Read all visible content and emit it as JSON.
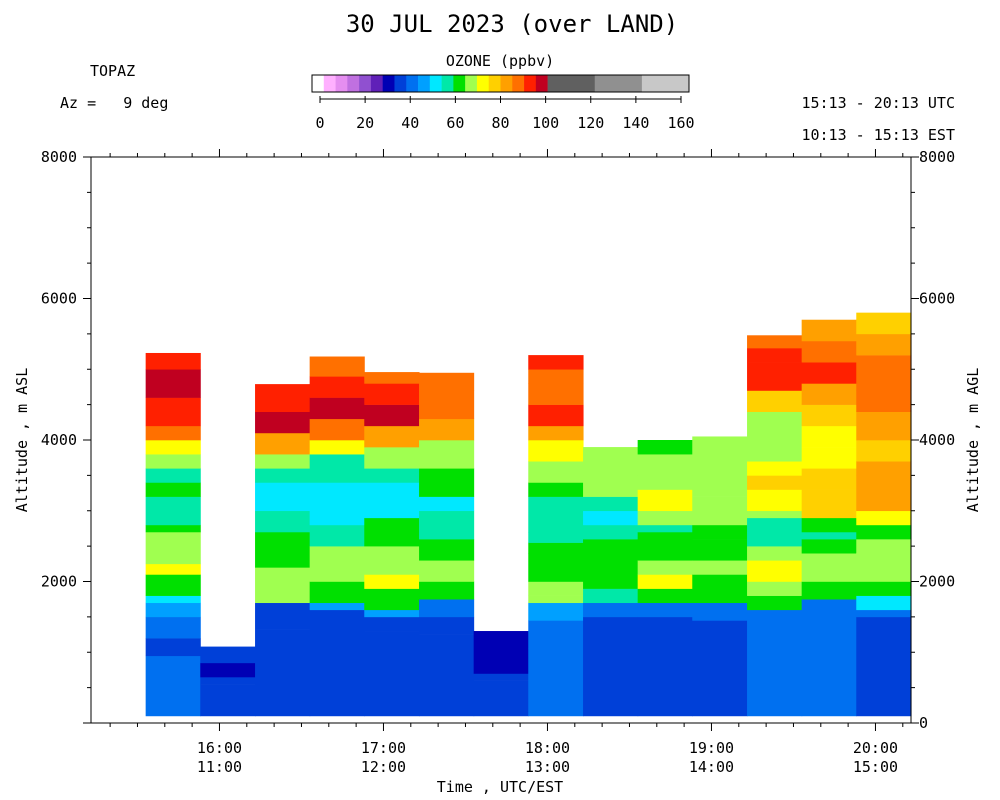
{
  "title": "30 JUL 2023 (over LAND)",
  "site": "TOPAZ",
  "azimuth": "Az =   9 deg",
  "utc_range": "15:13 - 20:13 UTC",
  "est_range": "10:13 - 15:13 EST",
  "colorbar": {
    "label": "OZONE (ppbv)",
    "ticks": [
      "0",
      "20",
      "40",
      "60",
      "80",
      "100",
      "120",
      "140",
      "160"
    ],
    "tick_values": [
      0,
      20,
      40,
      60,
      80,
      100,
      120,
      140,
      160
    ],
    "range": [
      0,
      160
    ],
    "bins": [
      {
        "from": 0,
        "to": 5,
        "color": "#ffffff"
      },
      {
        "from": 5,
        "to": 10,
        "color": "#ffb0ff"
      },
      {
        "from": 10,
        "to": 15,
        "color": "#e58ef0"
      },
      {
        "from": 15,
        "to": 20,
        "color": "#c070e0"
      },
      {
        "from": 20,
        "to": 25,
        "color": "#9050d0"
      },
      {
        "from": 25,
        "to": 30,
        "color": "#6020b8"
      },
      {
        "from": 30,
        "to": 35,
        "color": "#0000b4"
      },
      {
        "from": 35,
        "to": 40,
        "color": "#0040d8"
      },
      {
        "from": 40,
        "to": 45,
        "color": "#0070f0"
      },
      {
        "from": 45,
        "to": 50,
        "color": "#00a0ff"
      },
      {
        "from": 50,
        "to": 55,
        "color": "#00e8ff"
      },
      {
        "from": 55,
        "to": 60,
        "color": "#00e8a8"
      },
      {
        "from": 60,
        "to": 65,
        "color": "#00e000"
      },
      {
        "from": 65,
        "to": 70,
        "color": "#a0ff50"
      },
      {
        "from": 70,
        "to": 75,
        "color": "#ffff00"
      },
      {
        "from": 75,
        "to": 80,
        "color": "#ffd000"
      },
      {
        "from": 80,
        "to": 85,
        "color": "#ffa000"
      },
      {
        "from": 85,
        "to": 90,
        "color": "#ff7000"
      },
      {
        "from": 90,
        "to": 95,
        "color": "#ff2000"
      },
      {
        "from": 95,
        "to": 100,
        "color": "#c00020"
      },
      {
        "from": 100,
        "to": 120,
        "color": "#606060"
      },
      {
        "from": 120,
        "to": 140,
        "color": "#909090"
      },
      {
        "from": 140,
        "to": 160,
        "color": "#c8c8c8"
      }
    ]
  },
  "chart_data": {
    "type": "heatmap",
    "title": "30 JUL 2023 (over LAND)",
    "xlabel": "Time , UTC/EST",
    "ylabel_left": "Altitude , m ASL",
    "ylabel_right": "Altitude , m AGL",
    "x_range_utc_hours": [
      15.2167,
      20.2167
    ],
    "y_range_left": [
      0,
      8000
    ],
    "y_ticks_left": [
      "2000",
      "4000",
      "6000",
      "8000"
    ],
    "y_tick_values_left": [
      2000,
      4000,
      6000,
      8000
    ],
    "y_ticks_right": [
      "0",
      "2000",
      "4000",
      "6000",
      "8000"
    ],
    "y_tick_values_right": [
      0,
      2000,
      4000,
      6000,
      8000
    ],
    "right_axis_offset_m": 0,
    "x_ticks_utc": [
      "16:00",
      "17:00",
      "18:00",
      "19:00",
      "20:00"
    ],
    "x_ticks_est": [
      "11:00",
      "12:00",
      "13:00",
      "14:00",
      "15:00"
    ],
    "x_tick_values": [
      16,
      17,
      18,
      19,
      20
    ],
    "profiles": [
      {
        "start": 15.55,
        "end": 15.883,
        "top": 5230,
        "layers": [
          [
            100,
            42
          ],
          [
            950,
            37
          ],
          [
            1200,
            42
          ],
          [
            1500,
            45
          ],
          [
            1700,
            52
          ],
          [
            1800,
            60
          ],
          [
            2100,
            70
          ],
          [
            2250,
            67
          ],
          [
            2700,
            61
          ],
          [
            2800,
            58
          ],
          [
            3200,
            62
          ],
          [
            3400,
            58
          ],
          [
            3600,
            67
          ],
          [
            3800,
            71
          ],
          [
            4000,
            87
          ],
          [
            4200,
            93
          ],
          [
            4600,
            97
          ],
          [
            5000,
            91
          ],
          [
            5230,
            88
          ]
        ]
      },
      {
        "start": 15.883,
        "end": 16.217,
        "top": 1080,
        "layers": [
          [
            100,
            37
          ],
          [
            550,
            36
          ],
          [
            650,
            32
          ],
          [
            850,
            38
          ],
          [
            1080,
            40
          ]
        ]
      },
      {
        "start": 16.217,
        "end": 16.55,
        "top": 4790,
        "layers": [
          [
            100,
            37
          ],
          [
            1320,
            37
          ],
          [
            1700,
            68
          ],
          [
            2050,
            67
          ],
          [
            2200,
            62
          ],
          [
            2700,
            57
          ],
          [
            3000,
            54
          ],
          [
            3400,
            58
          ],
          [
            3600,
            67
          ],
          [
            3800,
            82
          ],
          [
            4100,
            96
          ],
          [
            4400,
            92
          ],
          [
            4790,
            91
          ]
        ]
      },
      {
        "start": 16.55,
        "end": 16.883,
        "top": 5180,
        "layers": [
          [
            100,
            36
          ],
          [
            1350,
            37
          ],
          [
            1600,
            45
          ],
          [
            1700,
            60
          ],
          [
            2000,
            67
          ],
          [
            2500,
            58
          ],
          [
            2800,
            54
          ],
          [
            3400,
            58
          ],
          [
            3800,
            71
          ],
          [
            4000,
            89
          ],
          [
            4300,
            95
          ],
          [
            4600,
            92
          ],
          [
            4900,
            88
          ],
          [
            5180,
            80
          ]
        ]
      },
      {
        "start": 16.883,
        "end": 17.217,
        "top": 4960,
        "layers": [
          [
            100,
            36
          ],
          [
            1300,
            37
          ],
          [
            1500,
            45
          ],
          [
            1600,
            62
          ],
          [
            1900,
            70
          ],
          [
            2100,
            67
          ],
          [
            2500,
            60
          ],
          [
            2900,
            54
          ],
          [
            3400,
            58
          ],
          [
            3600,
            67
          ],
          [
            3900,
            82
          ],
          [
            4200,
            96
          ],
          [
            4500,
            92
          ],
          [
            4800,
            87
          ],
          [
            4960,
            89
          ]
        ]
      },
      {
        "start": 17.217,
        "end": 17.55,
        "top": 4950,
        "layers": [
          [
            100,
            36
          ],
          [
            1250,
            37
          ],
          [
            1500,
            42
          ],
          [
            1750,
            62
          ],
          [
            2000,
            67
          ],
          [
            2300,
            62
          ],
          [
            2600,
            57
          ],
          [
            3000,
            54
          ],
          [
            3200,
            62
          ],
          [
            3600,
            67
          ],
          [
            4000,
            81
          ],
          [
            4300,
            89
          ],
          [
            4700,
            85
          ],
          [
            4950,
            90
          ]
        ]
      },
      {
        "start": 17.55,
        "end": 17.883,
        "top": 1300,
        "layers": [
          [
            100,
            37
          ],
          [
            600,
            36
          ],
          [
            700,
            32
          ],
          [
            1300,
            40
          ]
        ]
      },
      {
        "start": 17.883,
        "end": 18.217,
        "top": 5200,
        "layers": [
          [
            100,
            40
          ],
          [
            1050,
            42
          ],
          [
            1450,
            48
          ],
          [
            1700,
            67
          ],
          [
            1800,
            69
          ],
          [
            2000,
            64
          ],
          [
            2400,
            60
          ],
          [
            2550,
            57
          ],
          [
            2700,
            55
          ],
          [
            3200,
            62
          ],
          [
            3400,
            67
          ],
          [
            3700,
            70
          ],
          [
            4000,
            82
          ],
          [
            4200,
            92
          ],
          [
            4500,
            87
          ],
          [
            4800,
            85
          ],
          [
            5000,
            92
          ],
          [
            5200,
            85
          ]
        ]
      },
      {
        "start": 18.217,
        "end": 18.55,
        "top": 3900,
        "layers": [
          [
            100,
            38
          ],
          [
            1500,
            41
          ],
          [
            1700,
            55
          ],
          [
            1900,
            63
          ],
          [
            2300,
            60
          ],
          [
            2600,
            57
          ],
          [
            2800,
            53
          ],
          [
            3000,
            58
          ],
          [
            3200,
            67
          ],
          [
            3500,
            69
          ],
          [
            3900,
            67
          ]
        ]
      },
      {
        "start": 18.55,
        "end": 18.883,
        "top": 4000,
        "layers": [
          [
            100,
            38
          ],
          [
            1500,
            41
          ],
          [
            1700,
            60
          ],
          [
            1900,
            70
          ],
          [
            2100,
            67
          ],
          [
            2300,
            62
          ],
          [
            2700,
            58
          ],
          [
            2800,
            67
          ],
          [
            3000,
            70
          ],
          [
            3300,
            67
          ],
          [
            3700,
            68
          ],
          [
            3800,
            61
          ],
          [
            4000,
            67
          ]
        ]
      },
      {
        "start": 18.883,
        "end": 19.217,
        "top": 4050,
        "layers": [
          [
            100,
            38
          ],
          [
            1450,
            42
          ],
          [
            1700,
            62
          ],
          [
            2100,
            67
          ],
          [
            2300,
            61
          ],
          [
            2600,
            62
          ],
          [
            2800,
            66
          ],
          [
            3200,
            68
          ],
          [
            3500,
            67
          ],
          [
            4050,
            68
          ]
        ]
      },
      {
        "start": 19.217,
        "end": 19.55,
        "top": 5480,
        "layers": [
          [
            100,
            40
          ],
          [
            1400,
            42
          ],
          [
            1600,
            60
          ],
          [
            1800,
            67
          ],
          [
            2000,
            71
          ],
          [
            2300,
            68
          ],
          [
            2500,
            58
          ],
          [
            2700,
            57
          ],
          [
            2900,
            68
          ],
          [
            3000,
            72
          ],
          [
            3300,
            75
          ],
          [
            3500,
            72
          ],
          [
            3700,
            67
          ],
          [
            4100,
            68
          ],
          [
            4400,
            78
          ],
          [
            4700,
            92
          ],
          [
            5100,
            90
          ],
          [
            5300,
            85
          ],
          [
            5480,
            76
          ]
        ]
      },
      {
        "start": 19.55,
        "end": 19.883,
        "top": 5700,
        "layers": [
          [
            100,
            40
          ],
          [
            1500,
            44
          ],
          [
            1750,
            62
          ],
          [
            2000,
            67
          ],
          [
            2400,
            60
          ],
          [
            2600,
            57
          ],
          [
            2700,
            63
          ],
          [
            2900,
            76
          ],
          [
            3300,
            77
          ],
          [
            3600,
            74
          ],
          [
            3900,
            70
          ],
          [
            4200,
            78
          ],
          [
            4500,
            81
          ],
          [
            4800,
            90
          ],
          [
            5100,
            86
          ],
          [
            5400,
            83
          ],
          [
            5700,
            74
          ]
        ]
      },
      {
        "start": 19.883,
        "end": 20.217,
        "top": 5800,
        "layers": [
          [
            100,
            37
          ],
          [
            1500,
            42
          ],
          [
            1600,
            50
          ],
          [
            1800,
            60
          ],
          [
            2000,
            67
          ],
          [
            2400,
            67
          ],
          [
            2600,
            61
          ],
          [
            2800,
            70
          ],
          [
            3000,
            80
          ],
          [
            3500,
            81
          ],
          [
            3700,
            77
          ],
          [
            4000,
            83
          ],
          [
            4400,
            86
          ],
          [
            4700,
            89
          ],
          [
            5200,
            82
          ],
          [
            5500,
            75
          ],
          [
            5800,
            72
          ]
        ]
      }
    ]
  }
}
